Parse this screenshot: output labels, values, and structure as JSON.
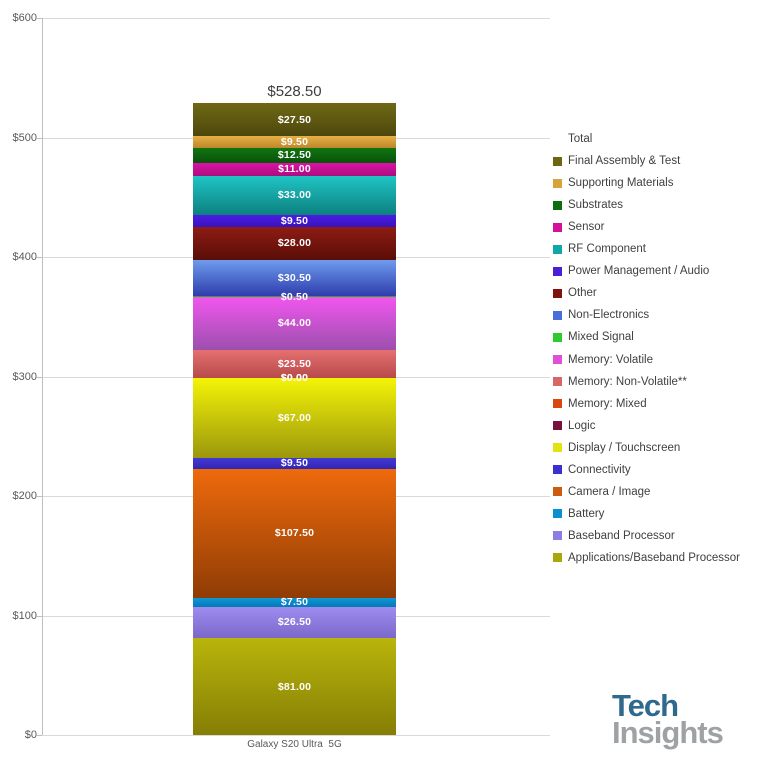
{
  "chart_data": {
    "type": "bar",
    "stacked": true,
    "categories": [
      "Galaxy S20 Ultra  5G"
    ],
    "total": {
      "value": 528.5,
      "label": "$528.50"
    },
    "ylim": [
      0,
      600
    ],
    "grid": true,
    "legend_position": "right",
    "legend_title": "Total",
    "y_ticks": [
      {
        "value": 0,
        "label": "$0"
      },
      {
        "value": 100,
        "label": "$100"
      },
      {
        "value": 200,
        "label": "$200"
      },
      {
        "value": 300,
        "label": "$300"
      },
      {
        "value": 400,
        "label": "$400"
      },
      {
        "value": 500,
        "label": "$500"
      },
      {
        "value": 600,
        "label": "$600"
      }
    ],
    "series_bottom_to_top": [
      {
        "name": "Applications/Baseband Processor",
        "value": 81.0,
        "label": "$81.00",
        "legend_color": "#aaa70a",
        "fill_top": "#b9b50b",
        "fill_bottom": "#857e06"
      },
      {
        "name": "Baseband Processor",
        "value": 26.5,
        "label": "$26.50",
        "legend_color": "#8d7ce3",
        "fill_top": "#9e8cee",
        "fill_bottom": "#7a68ca"
      },
      {
        "name": "Battery",
        "value": 7.5,
        "label": "$7.50",
        "legend_color": "#0a8fd0",
        "fill_top": "#0d96d8",
        "fill_bottom": "#0878b6"
      },
      {
        "name": "Camera / Image",
        "value": 107.5,
        "label": "$107.50",
        "legend_color": "#cc5c0f",
        "fill_top": "#ee6a0c",
        "fill_bottom": "#8f3c05"
      },
      {
        "name": "Connectivity",
        "value": 9.5,
        "label": "$9.50",
        "legend_color": "#3c2fd0",
        "fill_top": "#4438d8",
        "fill_bottom": "#3226b0"
      },
      {
        "name": "Display / Touchscreen",
        "value": 67.0,
        "label": "$67.00",
        "legend_color": "#e3e312",
        "fill_top": "#f4f407",
        "fill_bottom": "#9b970d"
      },
      {
        "name": "Logic",
        "value": 0.0,
        "label": "$0.00",
        "legend_color": "#77103d",
        "fill_top": "#77103d",
        "fill_bottom": "#77103d"
      },
      {
        "name": "Memory: Mixed",
        "value": 0.0,
        "label": "$0.00",
        "legend_color": "#d9480f",
        "fill_top": "#d9480f",
        "fill_bottom": "#d9480f"
      },
      {
        "name": "Memory: Non-Volatile**",
        "value": 23.5,
        "label": "$23.50",
        "legend_color": "#d96666",
        "fill_top": "#e57070",
        "fill_bottom": "#b84a4a"
      },
      {
        "name": "Memory: Volatile",
        "value": 44.0,
        "label": "$44.00",
        "legend_color": "#e14fd8",
        "fill_top": "#f156ee",
        "fill_bottom": "#9c4fae"
      },
      {
        "name": "Mixed Signal",
        "value": 0.5,
        "label": "$0.50",
        "legend_color": "#2eca2e",
        "fill_top": "#2ab42a",
        "fill_bottom": "#289c28"
      },
      {
        "name": "Non-Electronics",
        "value": 30.5,
        "label": "$30.50",
        "legend_color": "#4a6ed9",
        "fill_top": "#6f9bee",
        "fill_bottom": "#2e3dac"
      },
      {
        "name": "Other",
        "value": 28.0,
        "label": "$28.00",
        "legend_color": "#7e120e",
        "fill_top": "#8e1c14",
        "fill_bottom": "#5a0d07"
      },
      {
        "name": "Power Management / Audio",
        "value": 9.5,
        "label": "$9.50",
        "legend_color": "#4a1fd6",
        "fill_top": "#4a1ce2",
        "fill_bottom": "#3a13bc"
      },
      {
        "name": "RF Component",
        "value": 33.0,
        "label": "$33.00",
        "legend_color": "#0fa7a7",
        "fill_top": "#1fc4c4",
        "fill_bottom": "#0d8080"
      },
      {
        "name": "Sensor",
        "value": 11.0,
        "label": "$11.00",
        "legend_color": "#d3119c",
        "fill_top": "#dd12a6",
        "fill_bottom": "#a90d80"
      },
      {
        "name": "Substrates",
        "value": 12.5,
        "label": "$12.50",
        "legend_color": "#0e6e0e",
        "fill_top": "#0f7510",
        "fill_bottom": "#0a520a"
      },
      {
        "name": "Supporting Materials",
        "value": 9.5,
        "label": "$9.50",
        "legend_color": "#d9a33c",
        "fill_top": "#e7b045",
        "fill_bottom": "#bd872a"
      },
      {
        "name": "Final Assembly & Test",
        "value": 27.5,
        "label": "$27.50",
        "legend_color": "#6e6712",
        "fill_top": "#6f6915",
        "fill_bottom": "#4d470d"
      }
    ]
  },
  "logo": {
    "line1": "Tech",
    "line2": "Insights",
    "line1_color": "#2f6a8e",
    "line2_color": "#9fa2a4"
  }
}
